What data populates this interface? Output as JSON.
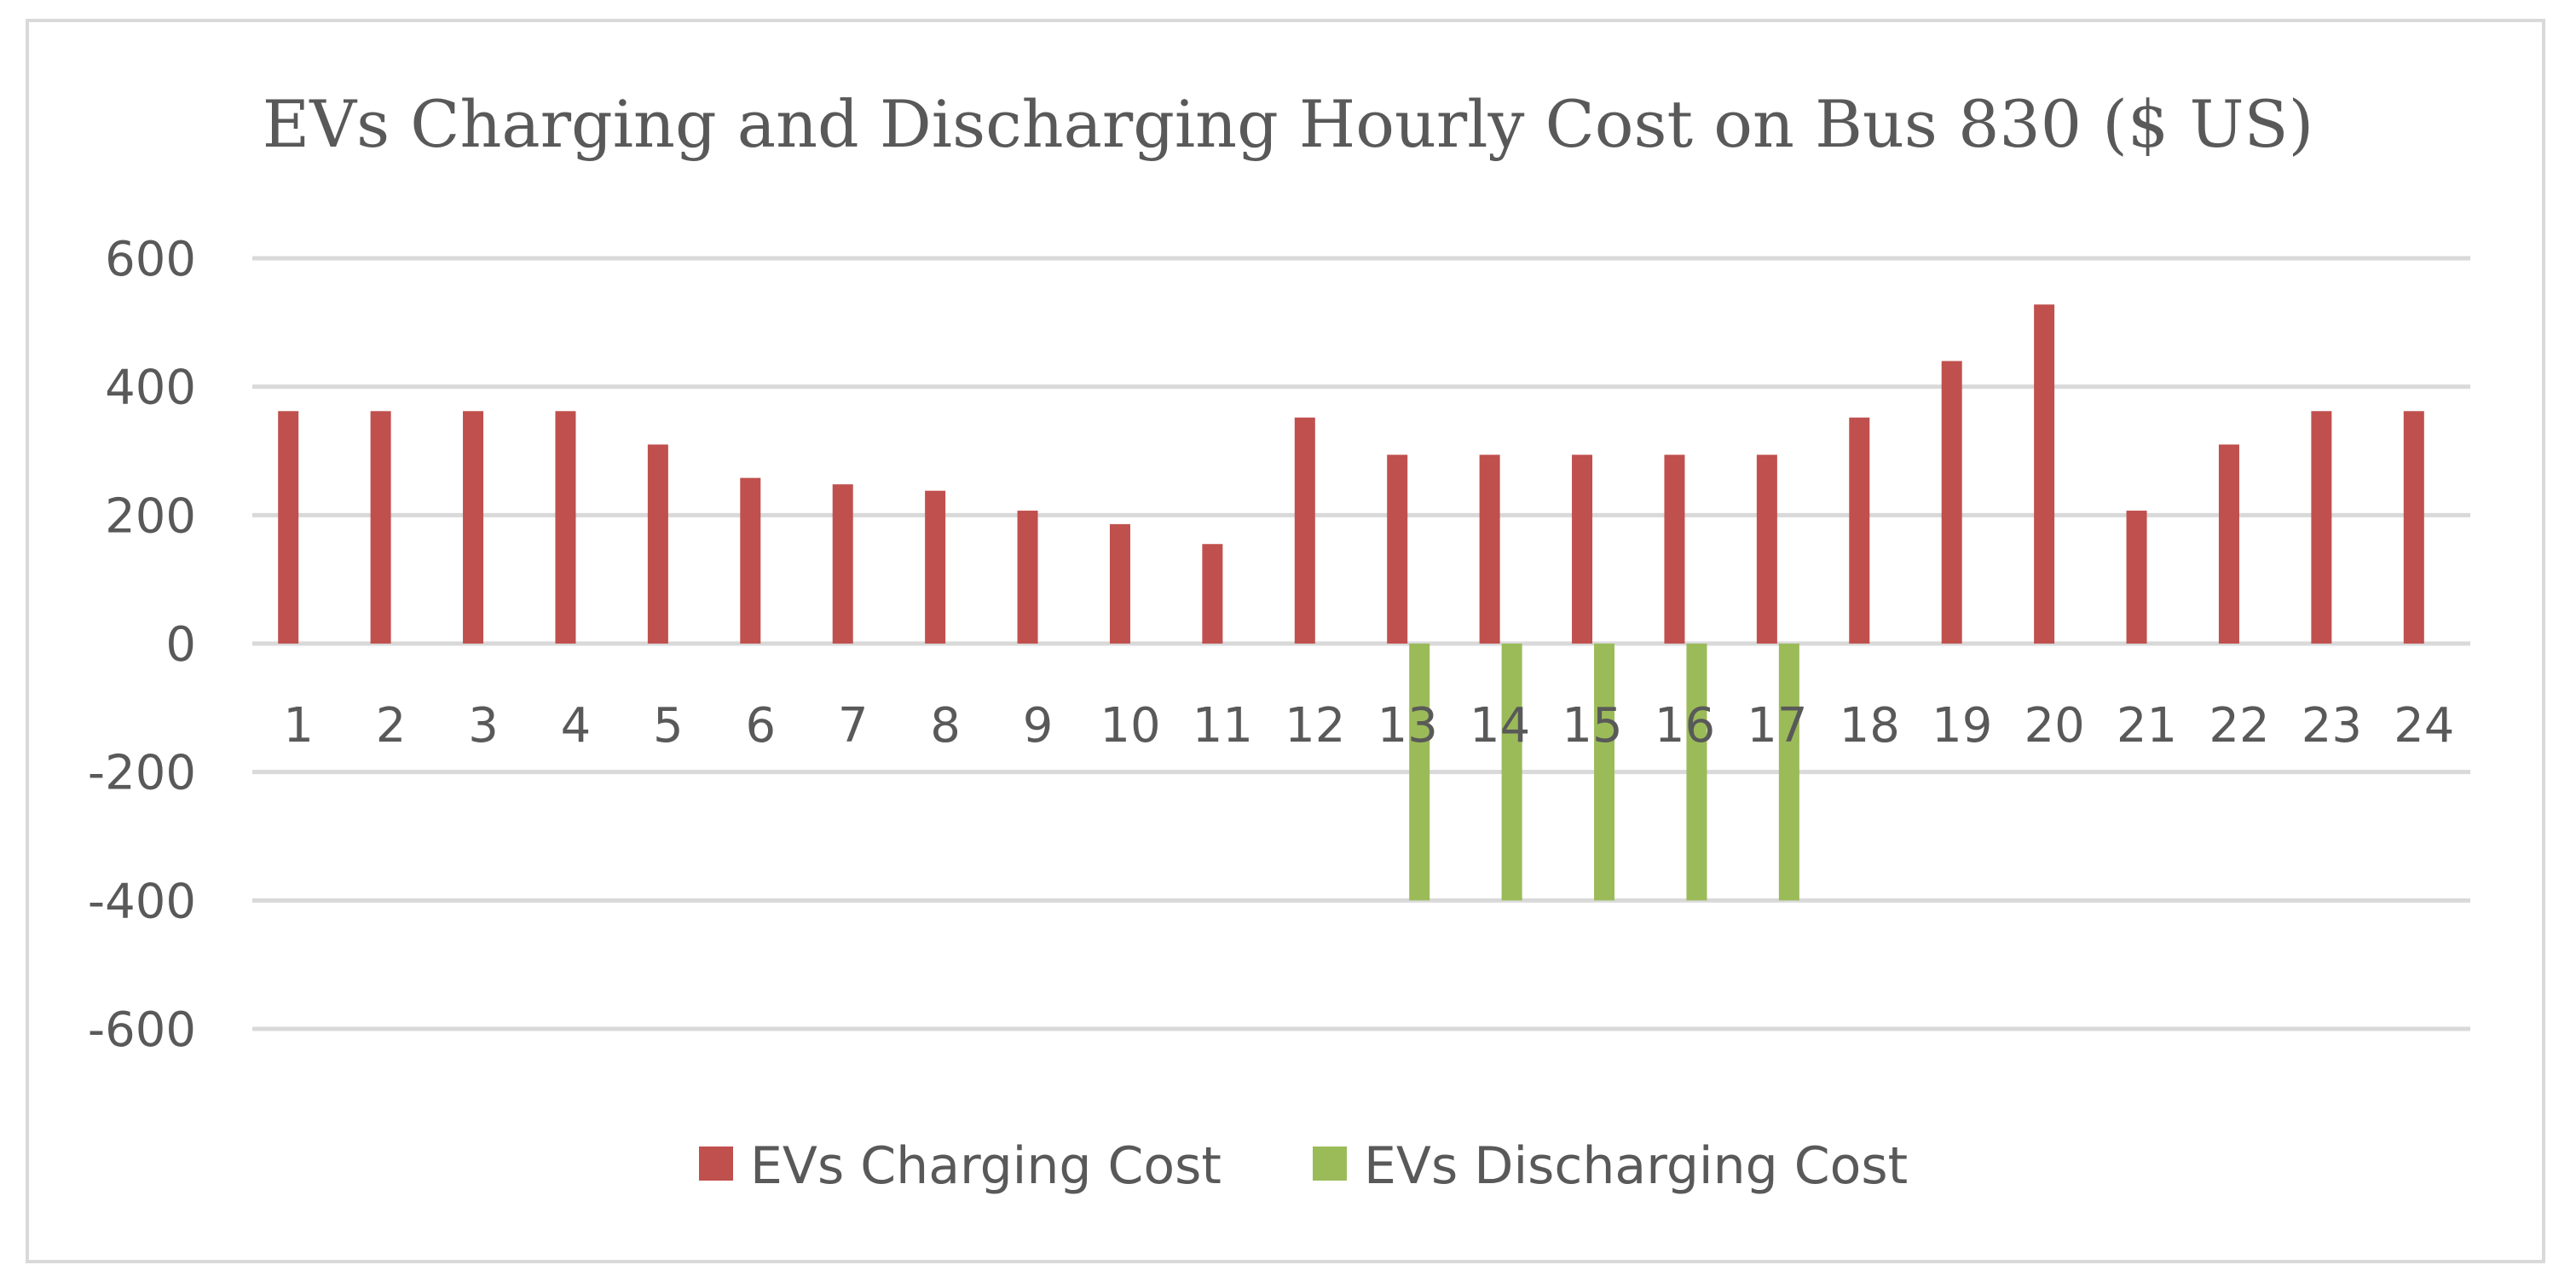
{
  "chart_data": {
    "type": "bar",
    "title": "EVs Charging and Discharging Hourly Cost on Bus 830 ($ US)",
    "xlabel": "",
    "ylabel": "",
    "categories": [
      "1",
      "2",
      "3",
      "4",
      "5",
      "6",
      "7",
      "8",
      "9",
      "10",
      "11",
      "12",
      "13",
      "14",
      "15",
      "16",
      "17",
      "18",
      "19",
      "20",
      "21",
      "22",
      "23",
      "24"
    ],
    "series": [
      {
        "name": "EVs Charging Cost",
        "color": "#c0504d",
        "values": [
          362,
          362,
          362,
          362,
          310,
          258,
          248,
          238,
          207,
          186,
          155,
          352,
          294,
          294,
          294,
          294,
          294,
          352,
          440,
          528,
          207,
          310,
          362,
          362
        ]
      },
      {
        "name": "EVs Discharging Cost",
        "color": "#9bbb59",
        "values": [
          0,
          0,
          0,
          0,
          0,
          0,
          0,
          0,
          0,
          0,
          0,
          0,
          -400,
          -400,
          -400,
          -400,
          -400,
          0,
          0,
          0,
          0,
          0,
          0,
          0
        ]
      }
    ],
    "ylim": [
      -600,
      600
    ],
    "yticks": [
      "600",
      "400",
      "200",
      "0",
      "-200",
      "-400",
      "-600"
    ],
    "ytick_values": [
      600,
      400,
      200,
      0,
      -200,
      -400,
      -600
    ],
    "grid": true,
    "legend_position": "bottom"
  }
}
